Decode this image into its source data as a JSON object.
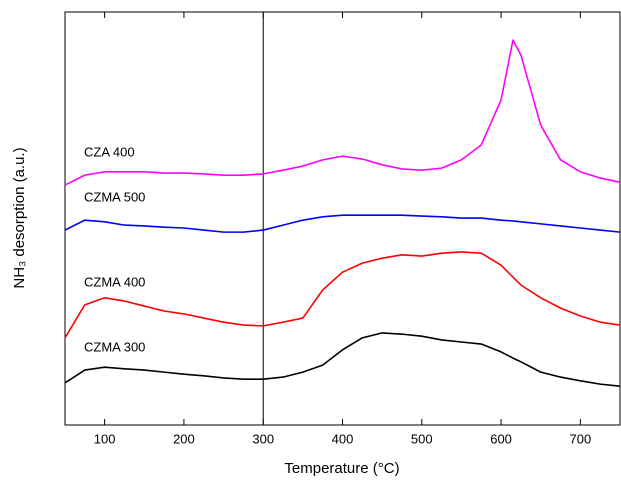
{
  "chart_data": {
    "type": "line",
    "x_label": "Temperature (°C)",
    "y_label": "NH₃ desorption (a.u.)",
    "x": [
      50,
      75,
      100,
      125,
      150,
      175,
      200,
      225,
      250,
      275,
      300,
      325,
      350,
      375,
      400,
      425,
      450,
      475,
      500,
      525,
      550,
      575,
      600,
      615,
      625,
      650,
      675,
      700,
      725,
      750
    ],
    "series": [
      {
        "name": "CZMA 300",
        "color": "#000000",
        "values": [
          10.2,
          13.3,
          14.0,
          13.6,
          13.3,
          12.8,
          12.3,
          11.9,
          11.4,
          11.1,
          11.1,
          11.6,
          12.8,
          14.5,
          18.2,
          21.1,
          22.3,
          22.0,
          21.5,
          20.6,
          20.1,
          19.6,
          17.7,
          16.2,
          15.3,
          12.8,
          11.6,
          10.7,
          9.9,
          9.4
        ]
      },
      {
        "name": "CZMA 400",
        "color": "#ff0000",
        "values": [
          21.1,
          29.1,
          30.8,
          30.0,
          28.8,
          27.6,
          26.9,
          25.9,
          24.9,
          24.2,
          24.0,
          24.9,
          25.9,
          32.7,
          37.0,
          39.2,
          40.4,
          41.2,
          40.9,
          41.6,
          41.9,
          41.6,
          38.7,
          35.8,
          33.9,
          30.8,
          28.3,
          26.4,
          24.9,
          24.2
        ]
      },
      {
        "name": "CZMA 500",
        "color": "#0000ff",
        "values": [
          47.2,
          49.6,
          49.2,
          48.4,
          48.2,
          47.9,
          47.7,
          47.2,
          46.7,
          46.7,
          47.2,
          48.4,
          49.6,
          50.4,
          50.8,
          50.8,
          50.8,
          50.8,
          50.6,
          50.4,
          50.1,
          50.1,
          49.6,
          49.4,
          49.2,
          48.7,
          48.2,
          47.7,
          47.2,
          46.7
        ]
      },
      {
        "name": "CZA 400",
        "color": "#ff00ff",
        "values": [
          58.1,
          60.5,
          61.3,
          61.3,
          61.3,
          61.0,
          61.0,
          60.8,
          60.5,
          60.5,
          60.8,
          61.7,
          62.7,
          64.2,
          65.1,
          64.4,
          63.0,
          62.0,
          61.7,
          62.2,
          64.2,
          67.8,
          78.7,
          93.2,
          89.6,
          72.6,
          64.2,
          61.3,
          59.8,
          58.8
        ]
      }
    ],
    "xlim": [
      50,
      750
    ],
    "xticks": [
      100,
      200,
      300,
      400,
      500,
      600,
      700
    ],
    "ylim": [
      0,
      100
    ],
    "vline": 300
  }
}
